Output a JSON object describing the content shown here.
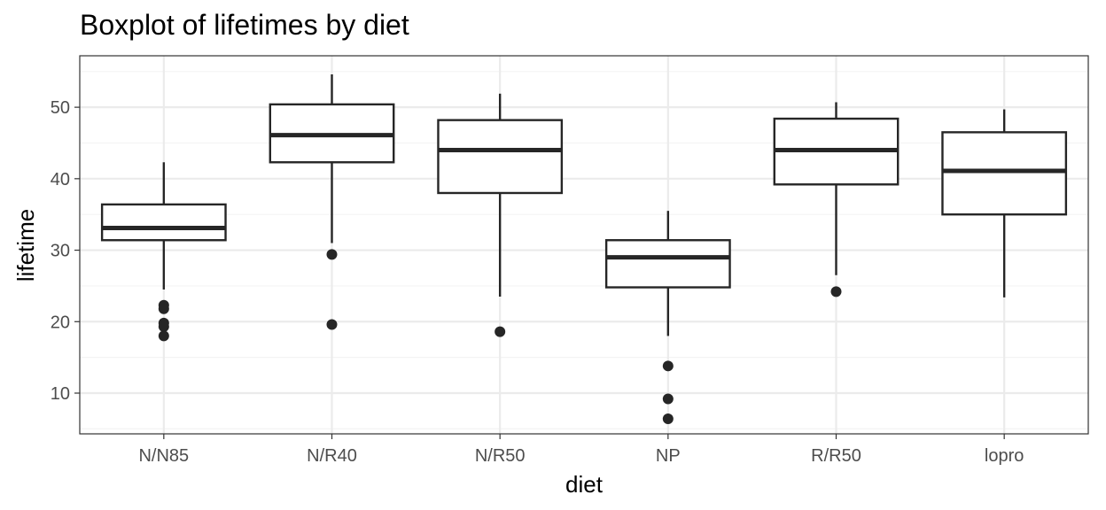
{
  "chart_data": {
    "type": "boxplot",
    "title": "Boxplot of lifetimes by diet",
    "xlabel": "diet",
    "ylabel": "lifetime",
    "categories": [
      "N/N85",
      "N/R40",
      "N/R50",
      "NP",
      "R/R50",
      "lopro"
    ],
    "boxes": [
      {
        "category": "N/N85",
        "whisker_low": 24.5,
        "q1": 31.4,
        "median": 33.1,
        "q3": 36.4,
        "whisker_high": 42.3,
        "outliers": [
          22.3,
          21.8,
          19.8,
          19.3,
          18.0
        ]
      },
      {
        "category": "N/R40",
        "whisker_low": 31.0,
        "q1": 42.3,
        "median": 46.1,
        "q3": 50.4,
        "whisker_high": 54.6,
        "outliers": [
          29.4,
          19.6
        ]
      },
      {
        "category": "N/R50",
        "whisker_low": 23.5,
        "q1": 38.0,
        "median": 44.0,
        "q3": 48.2,
        "whisker_high": 51.9,
        "outliers": [
          18.6
        ]
      },
      {
        "category": "NP",
        "whisker_low": 18.0,
        "q1": 24.8,
        "median": 29.0,
        "q3": 31.4,
        "whisker_high": 35.5,
        "outliers": [
          13.8,
          9.2,
          6.4
        ]
      },
      {
        "category": "R/R50",
        "whisker_low": 26.5,
        "q1": 39.2,
        "median": 44.0,
        "q3": 48.4,
        "whisker_high": 50.7,
        "outliers": [
          24.2
        ]
      },
      {
        "category": "lopro",
        "whisker_low": 23.4,
        "q1": 35.0,
        "median": 41.1,
        "q3": 46.5,
        "whisker_high": 49.7,
        "outliers": []
      }
    ],
    "ylim": [
      4.3,
      57.2
    ],
    "yticks": [
      10,
      20,
      30,
      40,
      50
    ],
    "grid": true,
    "legend": "none",
    "colors": {
      "box_stroke": "#262626",
      "box_fill": "#ffffff",
      "grid_major": "#ebebeb",
      "grid_minor": "#f4f4f4",
      "panel_border": "#333333",
      "tick_text": "#4d4d4d"
    }
  }
}
